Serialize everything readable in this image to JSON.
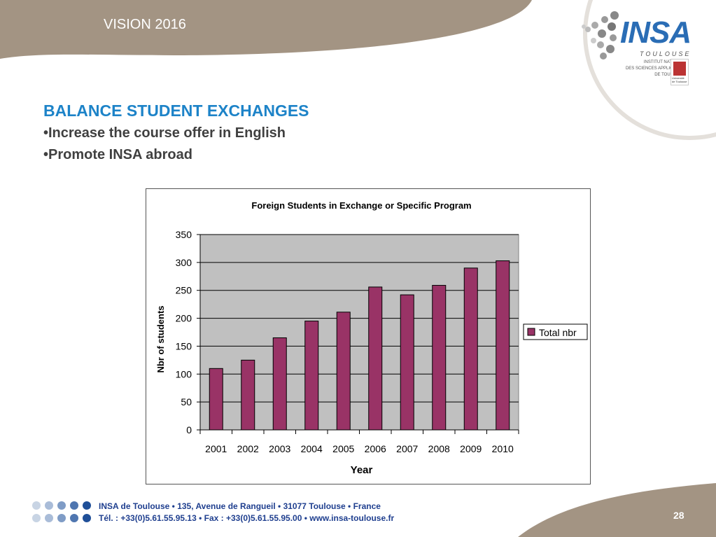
{
  "header": {
    "title": "VISION 2016"
  },
  "logo": {
    "name": "INSA",
    "city": "TOULOUSE",
    "lines": [
      "INSTITUT NATIONAL",
      "DES SCIENCES APPLIQUÉES",
      "DE TOULOUSE"
    ],
    "university": "Université de Toulouse"
  },
  "slide": {
    "heading": "BALANCE STUDENT EXCHANGES",
    "bullets": [
      "•Increase the course offer in English",
      "•Promote INSA abroad"
    ]
  },
  "chart_data": {
    "type": "bar",
    "title": "Foreign Students in Exchange or Specific Program",
    "xlabel": "Year",
    "ylabel": "Nbr of students",
    "categories": [
      "2001",
      "2002",
      "2003",
      "2004",
      "2005",
      "2006",
      "2007",
      "2008",
      "2009",
      "2010"
    ],
    "series": [
      {
        "name": "Total nbr",
        "values": [
          110,
          125,
          165,
          195,
          211,
          256,
          242,
          259,
          290,
          303
        ]
      }
    ],
    "ylim": [
      0,
      350
    ],
    "yticks": [
      "0",
      "50",
      "100",
      "150",
      "200",
      "250",
      "300",
      "350"
    ],
    "grid": true,
    "legend": "right",
    "colors": {
      "bar": "#993366",
      "plot_bg": "#c0c0c0"
    }
  },
  "footer": {
    "line1": "INSA de Toulouse • 135, Avenue de Rangueil • 31077 Toulouse • France",
    "line2": "Tél. : +33(0)5.61.55.95.13 • Fax : +33(0)5.61.55.95.00 • www.insa-toulouse.fr",
    "page_number": "28"
  }
}
